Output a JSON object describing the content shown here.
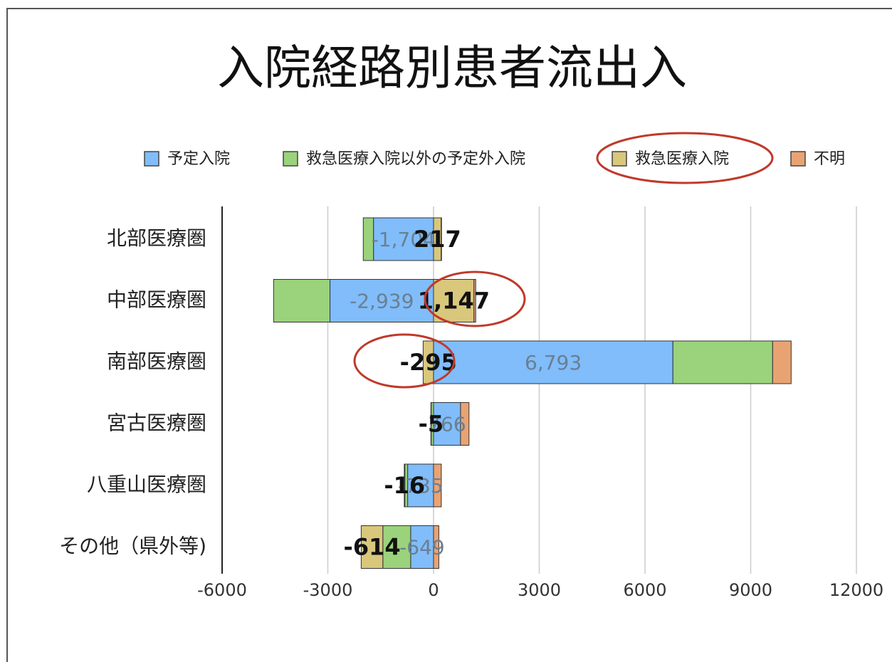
{
  "chart_data": {
    "type": "bar",
    "orientation": "horizontal",
    "stacked": true,
    "title": "入院経路別患者流出入",
    "categories": [
      "北部医療圏",
      "中部医療圏",
      "南部医療圏",
      "宮古医療圏",
      "八重山医療圏",
      "その他（県外等)"
    ],
    "series": [
      {
        "name": "予定入院",
        "color": "#80bdfa",
        "values": [
          -1704,
          -2939,
          6793,
          766,
          -735,
          -649
        ],
        "value_labels": [
          "-1,704",
          "-2,939",
          "6,793",
          "766",
          "-735",
          "-649"
        ]
      },
      {
        "name": "救急医療入院以外の予定外入院",
        "color": "#9bd27c",
        "values": [
          -290,
          -1600,
          2830,
          -70,
          -80,
          -790
        ]
      },
      {
        "name": "救急医療入院",
        "color": "#d9c77c",
        "values": [
          217,
          1147,
          -295,
          -5,
          -16,
          -614
        ],
        "value_labels": [
          "217",
          "1,147",
          "-295",
          "-5",
          "-16",
          "-614"
        ]
      },
      {
        "name": "不明",
        "color": "#e9a373",
        "values": [
          10,
          50,
          525,
          240,
          220,
          150
        ]
      }
    ],
    "xlim": [
      -6000,
      12000
    ],
    "xticks": [
      -6000,
      -3000,
      0,
      3000,
      6000,
      9000,
      12000
    ],
    "grid": true,
    "legend": "top"
  }
}
